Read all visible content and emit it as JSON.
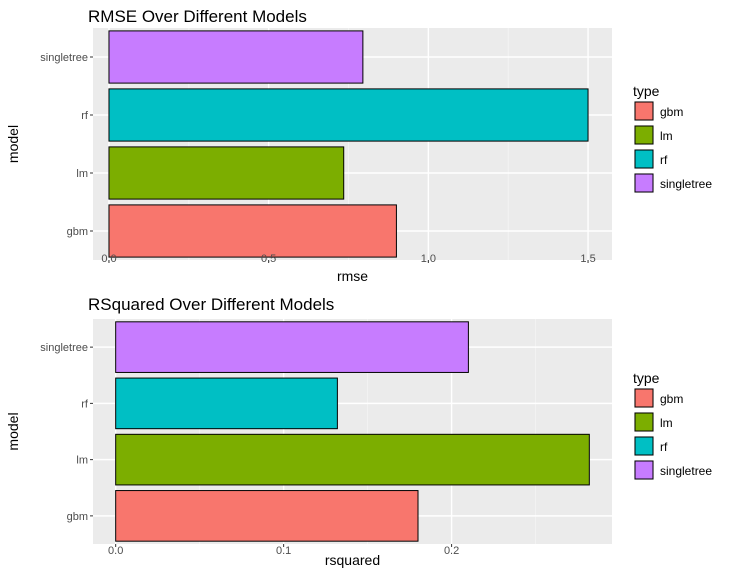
{
  "chart_data": [
    {
      "type": "bar",
      "orientation": "horizontal",
      "title": "RMSE Over Different Models",
      "xlabel": "rmse",
      "ylabel": "model",
      "categories": [
        "gbm",
        "lm",
        "rf",
        "singletree"
      ],
      "values": [
        0.9,
        0.735,
        1.5,
        0.795
      ],
      "fill_by_category": {
        "gbm": "#F8766D",
        "lm": "#7CAE00",
        "rf": "#00BFC4",
        "singletree": "#C77CFF"
      },
      "xlim": [
        -0.05,
        1.575
      ],
      "xticks": [
        0.0,
        0.5,
        1.0,
        1.5
      ],
      "xtick_labels": [
        "0.0",
        "0.5",
        "1.0",
        "1.5"
      ],
      "grid": true,
      "legend": {
        "title": "type",
        "position": "right",
        "entries": [
          "gbm",
          "lm",
          "rf",
          "singletree"
        ]
      }
    },
    {
      "type": "bar",
      "orientation": "horizontal",
      "title": "RSquared Over Different Models",
      "xlabel": "rsquared",
      "ylabel": "model",
      "categories": [
        "gbm",
        "lm",
        "rf",
        "singletree"
      ],
      "values": [
        0.18,
        0.282,
        0.132,
        0.21
      ],
      "fill_by_category": {
        "gbm": "#F8766D",
        "lm": "#7CAE00",
        "rf": "#00BFC4",
        "singletree": "#C77CFF"
      },
      "xlim": [
        -0.0135,
        0.2955
      ],
      "xticks": [
        0.0,
        0.1,
        0.2
      ],
      "xtick_labels": [
        "0.0",
        "0.1",
        "0.2"
      ],
      "grid": true,
      "legend": {
        "title": "type",
        "position": "right",
        "entries": [
          "gbm",
          "lm",
          "rf",
          "singletree"
        ]
      }
    }
  ]
}
